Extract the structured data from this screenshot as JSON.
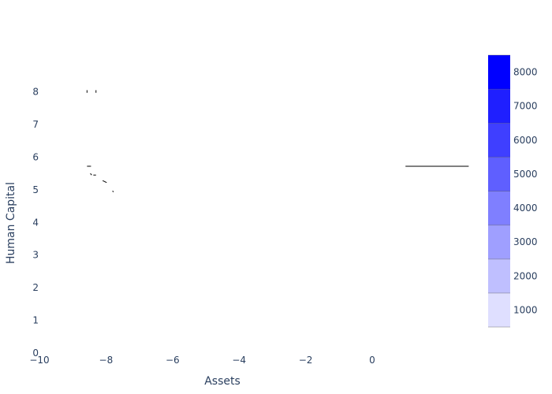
{
  "chart_data": {
    "type": "contour",
    "xlabel": "Assets",
    "ylabel": "Human Capital",
    "xlim": [
      -10,
      1.5
    ],
    "ylim": [
      0,
      9
    ],
    "x_ticks": [
      -10,
      -8,
      -6,
      -4,
      -2,
      0
    ],
    "x_tick_labels": [
      "−10",
      "−8",
      "−6",
      "−4",
      "−2",
      "0"
    ],
    "y_ticks": [
      0,
      1,
      2,
      3,
      4,
      5,
      6,
      7,
      8
    ],
    "y_tick_labels": [
      "0",
      "1",
      "2",
      "3",
      "4",
      "5",
      "6",
      "7",
      "8"
    ],
    "grid": false,
    "colorbar": {
      "placement": "right",
      "range": [
        500,
        8500
      ],
      "levels": [
        500,
        1500,
        2500,
        3500,
        4500,
        5500,
        6500,
        7500,
        8500
      ],
      "level_colors": [
        "#dfdfff",
        "#bfbfff",
        "#9f9fff",
        "#7f7fff",
        "#5f5fff",
        "#3f3fff",
        "#1f1fff",
        "#0000ff"
      ],
      "tick_values": [
        1000,
        2000,
        3000,
        4000,
        5000,
        6000,
        7000,
        8000
      ],
      "tick_labels": [
        "1000",
        "2000",
        "3000",
        "4000",
        "5000",
        "6000",
        "7000",
        "8000"
      ],
      "colorscale": [
        [
          "0",
          "#ffffff"
        ],
        [
          "1",
          "#0000ff"
        ]
      ]
    },
    "contour_fragments": [
      {
        "x": [
          -8.57,
          -8.57
        ],
        "y": [
          8.05,
          7.97
        ]
      },
      {
        "x": [
          -8.3,
          -8.3
        ],
        "y": [
          8.05,
          7.97
        ]
      },
      {
        "x": [
          -8.57,
          -8.45
        ],
        "y": [
          5.72,
          5.72
        ]
      },
      {
        "x": [
          -8.47,
          -8.43
        ],
        "y": [
          5.5,
          5.45
        ]
      },
      {
        "x": [
          -8.38,
          -8.3
        ],
        "y": [
          5.45,
          5.45
        ]
      },
      {
        "x": [
          -8.1,
          -7.98
        ],
        "y": [
          5.28,
          5.22
        ]
      },
      {
        "x": [
          -7.8,
          -7.78
        ],
        "y": [
          4.97,
          4.93
        ]
      },
      {
        "x": [
          1.0,
          2.9
        ],
        "y": [
          5.72,
          5.72
        ]
      }
    ]
  }
}
